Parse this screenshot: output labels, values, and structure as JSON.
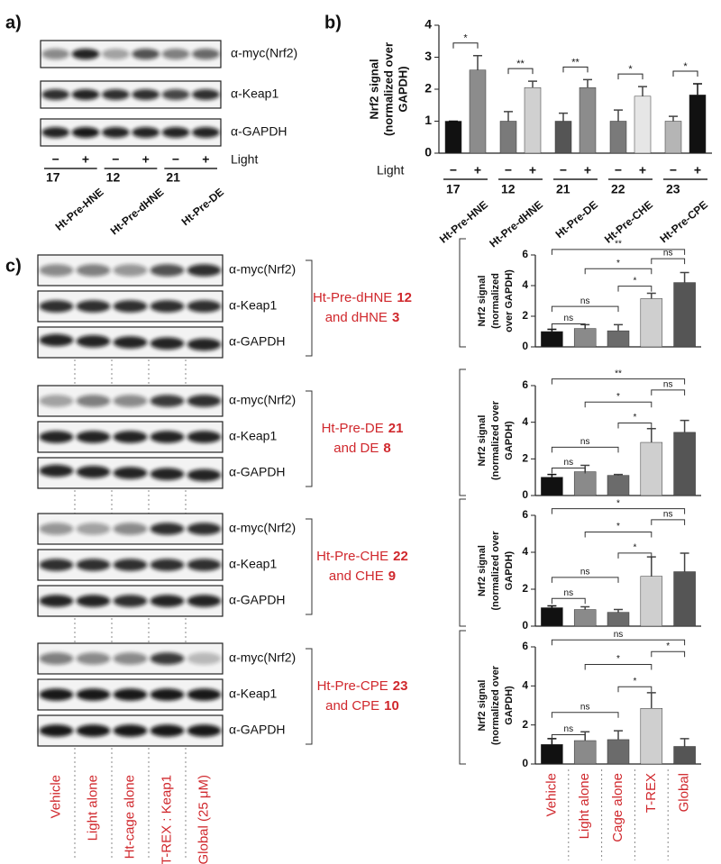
{
  "panels": {
    "a": {
      "label": "a)",
      "blot_rows": [
        "α-myc(Nrf2)",
        "α-Keap1",
        "α-GAPDH"
      ],
      "light": "Light",
      "lanes": [
        "−",
        "+",
        "−",
        "+",
        "−",
        "+"
      ],
      "groups": [
        {
          "number": "17",
          "name": "Ht-Pre-HNE"
        },
        {
          "number": "12",
          "name": "Ht-Pre-dHNE"
        },
        {
          "number": "21",
          "name": "Ht-Pre-DE"
        }
      ]
    },
    "b": {
      "label": "b)"
    },
    "c": {
      "label": "c)",
      "blots": [
        {
          "rows": [
            "α-myc(Nrf2)",
            "α-Keap1",
            "α-GAPDH"
          ],
          "name": "Ht-Pre-dHNE",
          "number": "12",
          "compound": "and dHNE",
          "compound_number": "3"
        },
        {
          "rows": [
            "α-myc(Nrf2)",
            "α-Keap1",
            "α-GAPDH"
          ],
          "name": "Ht-Pre-DE",
          "number": "21",
          "compound": "and DE",
          "compound_number": "8"
        },
        {
          "rows": [
            "α-myc(Nrf2)",
            "α-Keap1",
            "α-GAPDH"
          ],
          "name": "Ht-Pre-CHE",
          "number": "22",
          "compound": "and CHE",
          "compound_number": "9"
        },
        {
          "rows": [
            "α-myc(Nrf2)",
            "α-Keap1",
            "α-GAPDH"
          ],
          "name": "Ht-Pre-CPE",
          "number": "23",
          "compound": "and CPE",
          "compound_number": "10"
        }
      ],
      "lanes": [
        "Vehicle",
        "Light alone",
        "Ht-cage alone",
        "T-REX : Keap1",
        "Global (25 μM)"
      ]
    }
  },
  "chart_data": [
    {
      "type": "bar",
      "ylabel": [
        "Nrf2 signal",
        "(normalized over",
        "GAPDH)"
      ],
      "xlabel": "Light",
      "categories": [
        "−",
        "+",
        "−",
        "+",
        "−",
        "+",
        "−",
        "+",
        "−",
        "+"
      ],
      "values": [
        1,
        2.6,
        1,
        2.05,
        1,
        2.05,
        1,
        1.78,
        1,
        1.82
      ],
      "errors": [
        0,
        0.45,
        0.3,
        0.2,
        0.25,
        0.25,
        0.35,
        0.3,
        0.15,
        0.35
      ],
      "colors": [
        "#111111",
        "#8c8c8c",
        "#7a7a7a",
        "#d0d0d0",
        "#555555",
        "#8c8c8c",
        "#7a7a7a",
        "#e6e6e6",
        "#b5b5b5",
        "#111111"
      ],
      "ylim": [
        0,
        4
      ],
      "yticks": [
        0,
        1,
        2,
        3,
        4
      ],
      "groups": [
        {
          "number": "17",
          "name": "Ht-Pre-HNE"
        },
        {
          "number": "12",
          "name": "Ht-Pre-dHNE"
        },
        {
          "number": "21",
          "name": "Ht-Pre-DE"
        },
        {
          "number": "22",
          "name": "Ht-Pre-CHE"
        },
        {
          "number": "23",
          "name": "Ht-Pre-CPE"
        }
      ],
      "significance": [
        "*",
        "**",
        "**",
        "*",
        "*"
      ]
    },
    {
      "type": "bar",
      "ylabel": [
        "Nrf2 signal",
        "(normalized",
        "over GAPDH)"
      ],
      "categories": [
        null,
        null,
        null,
        null,
        null
      ],
      "values": [
        1.0,
        1.2,
        1.05,
        3.15,
        4.2
      ],
      "errors": [
        0.15,
        0.25,
        0.4,
        0.35,
        0.65
      ],
      "colors": [
        "#111111",
        "#8a8a8a",
        "#6b6b6b",
        "#cfcfcf",
        "#555555"
      ],
      "ylim": [
        0,
        6
      ],
      "yticks": [
        0,
        2,
        4,
        6
      ],
      "significance": [
        "**",
        "*",
        "ns",
        "ns",
        "*",
        "ns"
      ]
    },
    {
      "type": "bar",
      "ylabel": [
        "Nrf2 signal",
        "(normalized over",
        "GAPDH)"
      ],
      "categories": [
        null,
        null,
        null,
        null,
        null
      ],
      "values": [
        1.0,
        1.3,
        1.1,
        2.9,
        3.45
      ],
      "errors": [
        0.15,
        0.35,
        0.05,
        0.75,
        0.65
      ],
      "colors": [
        "#111111",
        "#8a8a8a",
        "#6b6b6b",
        "#cfcfcf",
        "#555555"
      ],
      "ylim": [
        0,
        6
      ],
      "yticks": [
        0,
        2,
        4,
        6
      ],
      "significance": [
        "**",
        "*",
        "ns",
        "ns",
        "*",
        "ns"
      ]
    },
    {
      "type": "bar",
      "ylabel": [
        "Nrf2 signal",
        "(normalized over",
        "GAPDH)"
      ],
      "categories": [
        null,
        null,
        null,
        null,
        null
      ],
      "values": [
        1.0,
        0.9,
        0.75,
        2.7,
        2.95
      ],
      "errors": [
        0.1,
        0.15,
        0.15,
        1.05,
        1.0
      ],
      "colors": [
        "#111111",
        "#8a8a8a",
        "#6b6b6b",
        "#cfcfcf",
        "#555555"
      ],
      "ylim": [
        0,
        6
      ],
      "yticks": [
        0,
        2,
        4,
        6
      ],
      "significance": [
        "*",
        "*",
        "ns",
        "ns",
        "*",
        "ns"
      ]
    },
    {
      "type": "bar",
      "ylabel": [
        "Nrf2 signal",
        "(normalized over",
        "GAPDH)"
      ],
      "categories": [
        "Vehicle",
        "Light alone",
        "Cage alone",
        "T-REX",
        "Global"
      ],
      "values": [
        1.0,
        1.2,
        1.25,
        2.85,
        0.9
      ],
      "errors": [
        0.3,
        0.45,
        0.45,
        0.8,
        0.4
      ],
      "colors": [
        "#111111",
        "#8a8a8a",
        "#6b6b6b",
        "#cfcfcf",
        "#555555"
      ],
      "ylim": [
        0,
        6
      ],
      "yticks": [
        0,
        2,
        4,
        6
      ],
      "significance": [
        "ns",
        "*",
        "*",
        "ns",
        "*",
        "ns"
      ]
    }
  ]
}
